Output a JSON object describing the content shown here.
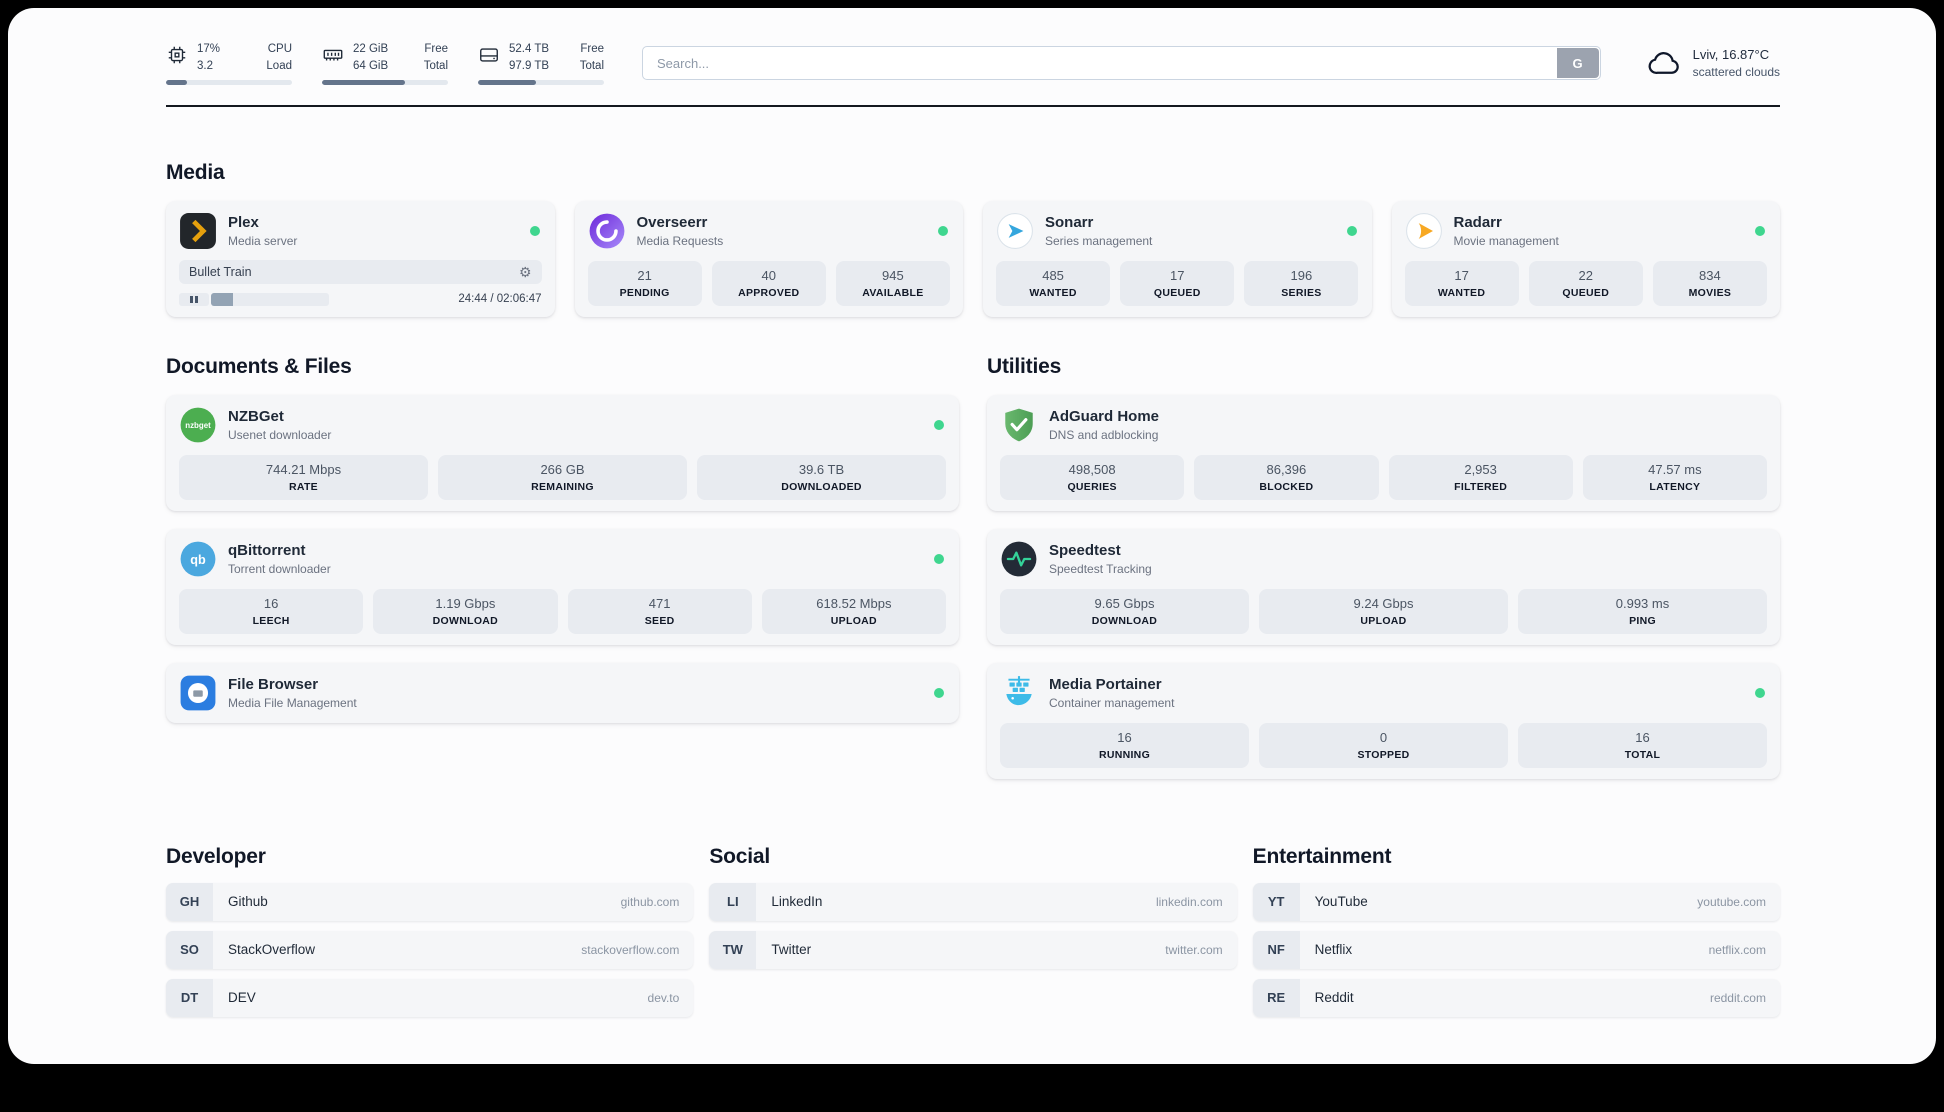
{
  "topbar": {
    "resources": [
      {
        "id": "cpu",
        "icon": "cpu-icon",
        "values": [
          "17%",
          "3.2"
        ],
        "labels": [
          "CPU",
          "Load"
        ],
        "used_percent": 17
      },
      {
        "id": "memory",
        "icon": "memory-icon",
        "values": [
          "22 GiB",
          "64 GiB"
        ],
        "labels": [
          "Free",
          "Total"
        ],
        "used_percent": 66
      },
      {
        "id": "disk",
        "icon": "disk-icon",
        "values": [
          "52.4 TB",
          "97.9 TB"
        ],
        "labels": [
          "Free",
          "Total"
        ],
        "used_percent": 46
      }
    ],
    "search": {
      "placeholder": "Search...",
      "button_label": "G"
    },
    "weather": {
      "icon": "cloud-icon",
      "location": "Lviv, 16.87°C",
      "condition": "scattered clouds"
    }
  },
  "service_groups": [
    {
      "title": "Media",
      "services": [
        {
          "name": "Plex",
          "subtitle": "Media server",
          "icon": "plex-icon",
          "status": "online",
          "player": {
            "title": "Bullet Train",
            "time_display": "24:44 / 02:06:47",
            "progress_percent": 19
          }
        },
        {
          "name": "Overseerr",
          "subtitle": "Media Requests",
          "icon": "overseerr-icon",
          "status": "online",
          "stats": [
            {
              "value": "21",
              "label": "PENDING"
            },
            {
              "value": "40",
              "label": "APPROVED"
            },
            {
              "value": "945",
              "label": "AVAILABLE"
            }
          ]
        },
        {
          "name": "Sonarr",
          "subtitle": "Series management",
          "icon": "sonarr-icon",
          "status": "online",
          "stats": [
            {
              "value": "485",
              "label": "WANTED"
            },
            {
              "value": "17",
              "label": "QUEUED"
            },
            {
              "value": "196",
              "label": "SERIES"
            }
          ]
        },
        {
          "name": "Radarr",
          "subtitle": "Movie management",
          "icon": "radarr-icon",
          "status": "online",
          "stats": [
            {
              "value": "17",
              "label": "WANTED"
            },
            {
              "value": "22",
              "label": "QUEUED"
            },
            {
              "value": "834",
              "label": "MOVIES"
            }
          ]
        }
      ]
    },
    {
      "title": "Documents & Files",
      "services": [
        {
          "name": "NZBGet",
          "subtitle": "Usenet downloader",
          "icon": "nzbget-icon",
          "status": "online",
          "stats": [
            {
              "value": "744.21 Mbps",
              "label": "RATE"
            },
            {
              "value": "266 GB",
              "label": "REMAINING"
            },
            {
              "value": "39.6 TB",
              "label": "DOWNLOADED"
            }
          ]
        },
        {
          "name": "qBittorrent",
          "subtitle": "Torrent downloader",
          "icon": "qbittorrent-icon",
          "status": "online",
          "stats": [
            {
              "value": "16",
              "label": "LEECH"
            },
            {
              "value": "1.19 Gbps",
              "label": "DOWNLOAD"
            },
            {
              "value": "471",
              "label": "SEED"
            },
            {
              "value": "618.52 Mbps",
              "label": "UPLOAD"
            }
          ]
        },
        {
          "name": "File Browser",
          "subtitle": "Media File Management",
          "icon": "filebrowser-icon",
          "status": "online",
          "stats": []
        }
      ]
    },
    {
      "title": "Utilities",
      "services": [
        {
          "name": "AdGuard Home",
          "subtitle": "DNS and adblocking",
          "icon": "adguard-icon",
          "stats": [
            {
              "value": "498,508",
              "label": "QUERIES"
            },
            {
              "value": "86,396",
              "label": "BLOCKED"
            },
            {
              "value": "2,953",
              "label": "FILTERED"
            },
            {
              "value": "47.57 ms",
              "label": "LATENCY"
            }
          ]
        },
        {
          "name": "Speedtest",
          "subtitle": "Speedtest Tracking",
          "icon": "speedtest-icon",
          "stats": [
            {
              "value": "9.65 Gbps",
              "label": "DOWNLOAD"
            },
            {
              "value": "9.24 Gbps",
              "label": "UPLOAD"
            },
            {
              "value": "0.993 ms",
              "label": "PING"
            }
          ]
        },
        {
          "name": "Media Portainer",
          "subtitle": "Container management",
          "icon": "portainer-icon",
          "status": "online",
          "stats": [
            {
              "value": "16",
              "label": "RUNNING"
            },
            {
              "value": "0",
              "label": "STOPPED"
            },
            {
              "value": "16",
              "label": "TOTAL"
            }
          ]
        }
      ]
    }
  ],
  "bookmark_groups": [
    {
      "title": "Developer",
      "links": [
        {
          "abbr": "GH",
          "name": "Github",
          "domain": "github.com"
        },
        {
          "abbr": "SO",
          "name": "StackOverflow",
          "domain": "stackoverflow.com"
        },
        {
          "abbr": "DT",
          "name": "DEV",
          "domain": "dev.to"
        }
      ]
    },
    {
      "title": "Social",
      "links": [
        {
          "abbr": "LI",
          "name": "LinkedIn",
          "domain": "linkedin.com"
        },
        {
          "abbr": "TW",
          "name": "Twitter",
          "domain": "twitter.com"
        }
      ]
    },
    {
      "title": "Entertainment",
      "links": [
        {
          "abbr": "YT",
          "name": "YouTube",
          "domain": "youtube.com"
        },
        {
          "abbr": "NF",
          "name": "Netflix",
          "domain": "netflix.com"
        },
        {
          "abbr": "RE",
          "name": "Reddit",
          "domain": "reddit.com"
        }
      ]
    }
  ],
  "colors": {
    "status_online": "#3fd68f",
    "plex_accent": "#e5a00d",
    "divider": "#14181f",
    "tile_bg": "#e8ebf0"
  }
}
